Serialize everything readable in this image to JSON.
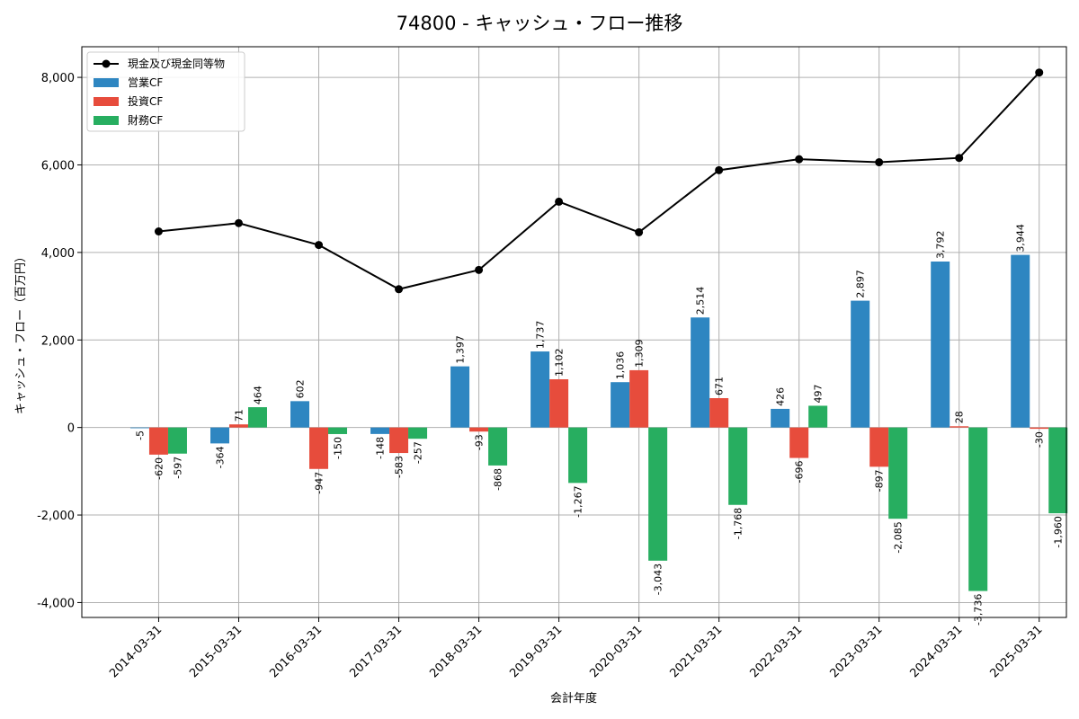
{
  "chart_data": {
    "type": "bar",
    "title": "74800 - キャッシュ・フロー推移",
    "xlabel": "会計年度",
    "ylabel": "キャッシュ・フロー（百万円）",
    "categories": [
      "2014-03-31",
      "2015-03-31",
      "2016-03-31",
      "2017-03-31",
      "2018-03-31",
      "2019-03-31",
      "2020-03-31",
      "2021-03-31",
      "2022-03-31",
      "2023-03-31",
      "2024-03-31",
      "2025-03-31"
    ],
    "ylim": [
      -4340,
      8700
    ],
    "yticks": [
      -4000,
      -2000,
      0,
      2000,
      4000,
      6000,
      8000
    ],
    "ytick_labels": [
      "-4,000",
      "-2,000",
      "0",
      "2,000",
      "4,000",
      "6,000",
      "8,000"
    ],
    "grid": true,
    "legend_position": "top-left",
    "series": [
      {
        "name": "営業CF",
        "kind": "bar",
        "color": "#2e86c1",
        "values": [
          -5,
          -364,
          602,
          -148,
          1397,
          1737,
          1036,
          2514,
          426,
          2897,
          3792,
          3944
        ],
        "labels": [
          "-5",
          "-364",
          "602",
          "-148",
          "1,397",
          "1,737",
          "1,036",
          "2,514",
          "426",
          "2,897",
          "3,792",
          "3,944"
        ]
      },
      {
        "name": "投資CF",
        "kind": "bar",
        "color": "#e74c3c",
        "values": [
          -620,
          71,
          -947,
          -583,
          -93,
          1102,
          1309,
          671,
          -696,
          -897,
          28,
          -30
        ],
        "labels": [
          "-620",
          "71",
          "-947",
          "-583",
          "-93",
          "1,102",
          "1,309",
          "671",
          "-696",
          "-897",
          "28",
          "-30"
        ]
      },
      {
        "name": "財務CF",
        "kind": "bar",
        "color": "#27ae60",
        "values": [
          -597,
          464,
          -150,
          -257,
          -868,
          -1267,
          -3043,
          -1768,
          497,
          -2085,
          -3736,
          -1960
        ],
        "labels": [
          "-597",
          "464",
          "-150",
          "-257",
          "-868",
          "-1,267",
          "-3,043",
          "-1,768",
          "497",
          "-2,085",
          "-3,736",
          "-1,960"
        ]
      },
      {
        "name": "現金及び現金同等物",
        "kind": "line",
        "color": "#000000",
        "values": [
          4480,
          4670,
          4170,
          3160,
          3600,
          5160,
          4460,
          5880,
          6130,
          6060,
          6160,
          8110
        ]
      }
    ]
  }
}
